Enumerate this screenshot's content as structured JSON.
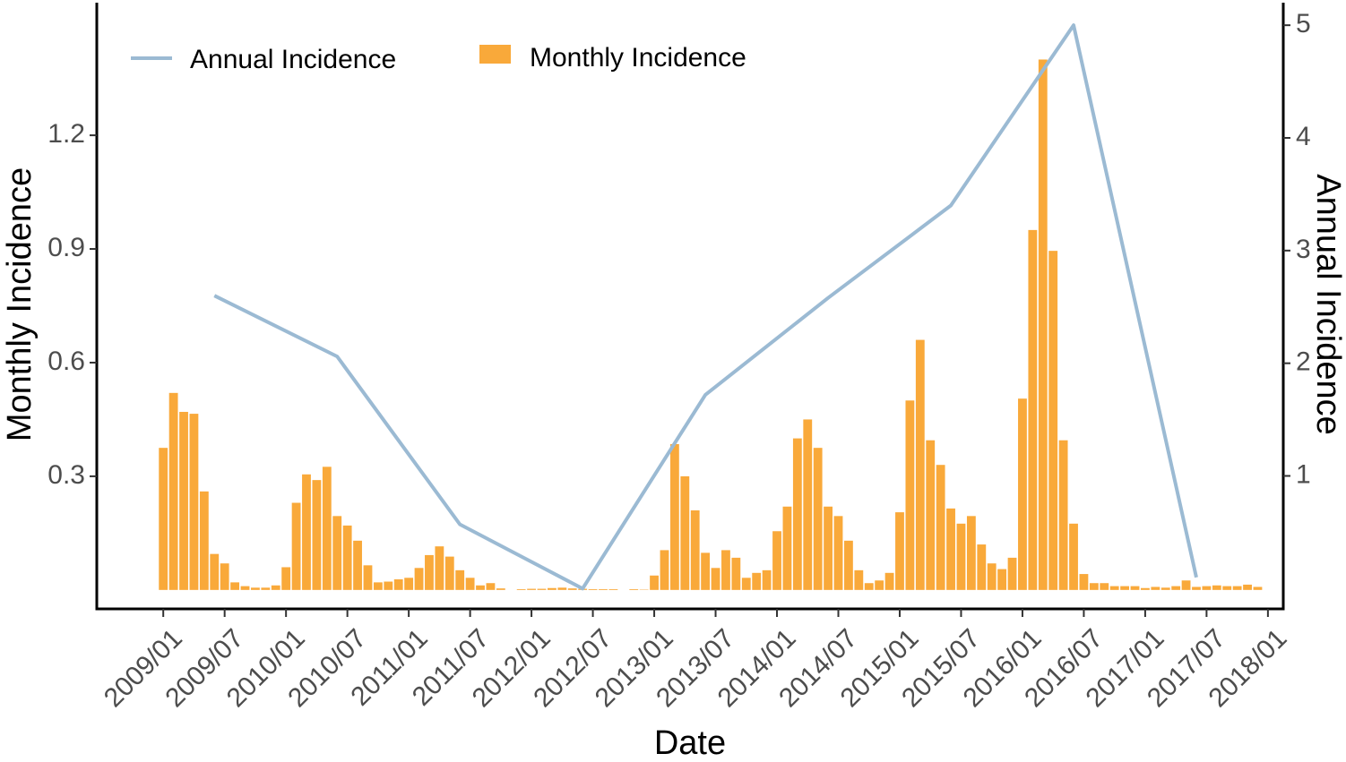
{
  "chart_data": {
    "type": "bar",
    "xlabel": "Date",
    "ylabel_left": "Monthly Incidence",
    "ylabel_right": "Annual Incidence",
    "x_ticks": [
      "2009/01",
      "2009/07",
      "2010/01",
      "2010/07",
      "2011/01",
      "2011/07",
      "2012/01",
      "2012/07",
      "2013/01",
      "2013/07",
      "2014/01",
      "2014/07",
      "2015/01",
      "2015/07",
      "2016/01",
      "2016/07",
      "2017/01",
      "2017/07",
      "2018/01"
    ],
    "y_left_ticks": [
      0.3,
      0.6,
      0.9,
      1.2
    ],
    "y_left_tick_labels": [
      "0.3",
      "0.6",
      "0.9",
      "1.2"
    ],
    "y_left_lim": [
      -0.05,
      1.55
    ],
    "y_right_ticks": [
      1,
      2,
      3,
      4,
      5
    ],
    "y_right_tick_labels": [
      "1",
      "2",
      "3",
      "4",
      "5"
    ],
    "y_right_lim": [
      -0.18,
      5.2
    ],
    "x_lim_month_index": [
      -6.5,
      109.5
    ],
    "legend": {
      "position": "top-left",
      "entries": [
        "Annual Incidence",
        "Monthly Incidence"
      ]
    },
    "series": [
      {
        "name": "Monthly Incidence",
        "type": "bar",
        "axis": "left",
        "color": "#F9A93A",
        "x": [
          "2009/01",
          "2009/02",
          "2009/03",
          "2009/04",
          "2009/05",
          "2009/06",
          "2009/07",
          "2009/08",
          "2009/09",
          "2009/10",
          "2009/11",
          "2009/12",
          "2010/01",
          "2010/02",
          "2010/03",
          "2010/04",
          "2010/05",
          "2010/06",
          "2010/07",
          "2010/08",
          "2010/09",
          "2010/10",
          "2010/11",
          "2010/12",
          "2011/01",
          "2011/02",
          "2011/03",
          "2011/04",
          "2011/05",
          "2011/06",
          "2011/07",
          "2011/08",
          "2011/09",
          "2011/10",
          "2011/11",
          "2011/12",
          "2012/01",
          "2012/02",
          "2012/03",
          "2012/04",
          "2012/05",
          "2012/06",
          "2012/07",
          "2012/08",
          "2012/09",
          "2012/10",
          "2012/11",
          "2012/12",
          "2013/01",
          "2013/02",
          "2013/03",
          "2013/04",
          "2013/05",
          "2013/06",
          "2013/07",
          "2013/08",
          "2013/09",
          "2013/10",
          "2013/11",
          "2013/12",
          "2014/01",
          "2014/02",
          "2014/03",
          "2014/04",
          "2014/05",
          "2014/06",
          "2014/07",
          "2014/08",
          "2014/09",
          "2014/10",
          "2014/11",
          "2014/12",
          "2015/01",
          "2015/02",
          "2015/03",
          "2015/04",
          "2015/05",
          "2015/06",
          "2015/07",
          "2015/08",
          "2015/09",
          "2015/10",
          "2015/11",
          "2015/12",
          "2016/01",
          "2016/02",
          "2016/03",
          "2016/04",
          "2016/05",
          "2016/06",
          "2016/07",
          "2016/08",
          "2016/09",
          "2016/10",
          "2016/11",
          "2016/12",
          "2017/01",
          "2017/02",
          "2017/03",
          "2017/04",
          "2017/05",
          "2017/06",
          "2017/07",
          "2017/08",
          "2017/09",
          "2017/10",
          "2017/11",
          "2017/12"
        ],
        "values": [
          0.375,
          0.52,
          0.47,
          0.465,
          0.26,
          0.095,
          0.07,
          0.02,
          0.01,
          0.006,
          0.006,
          0.012,
          0.06,
          0.23,
          0.305,
          0.29,
          0.325,
          0.195,
          0.17,
          0.13,
          0.065,
          0.02,
          0.022,
          0.028,
          0.032,
          0.058,
          0.092,
          0.115,
          0.088,
          0.052,
          0.032,
          0.012,
          0.018,
          0.004,
          0.0,
          0.002,
          0.003,
          0.003,
          0.005,
          0.006,
          0.004,
          0.003,
          0.002,
          0.002,
          0.002,
          0.0,
          0.002,
          0.001,
          0.038,
          0.105,
          0.385,
          0.3,
          0.21,
          0.098,
          0.058,
          0.105,
          0.085,
          0.032,
          0.045,
          0.052,
          0.155,
          0.22,
          0.4,
          0.45,
          0.375,
          0.22,
          0.195,
          0.13,
          0.052,
          0.018,
          0.025,
          0.045,
          0.205,
          0.5,
          0.66,
          0.395,
          0.33,
          0.215,
          0.175,
          0.195,
          0.12,
          0.07,
          0.055,
          0.085,
          0.505,
          0.95,
          1.4,
          0.895,
          0.395,
          0.175,
          0.042,
          0.018,
          0.018,
          0.01,
          0.01,
          0.01,
          0.005,
          0.008,
          0.006,
          0.01,
          0.025,
          0.008,
          0.01,
          0.012,
          0.01,
          0.01,
          0.014,
          0.008
        ]
      },
      {
        "name": "Annual Incidence",
        "type": "line",
        "axis": "right",
        "color": "#9BBAD3",
        "x": [
          "2009/06",
          "2010/06",
          "2011/06",
          "2012/06",
          "2013/06",
          "2014/06",
          "2015/06",
          "2016/06",
          "2017/06"
        ],
        "values": [
          2.6,
          2.06,
          0.57,
          0.0,
          1.72,
          2.58,
          3.4,
          5.0,
          0.1
        ]
      }
    ]
  }
}
